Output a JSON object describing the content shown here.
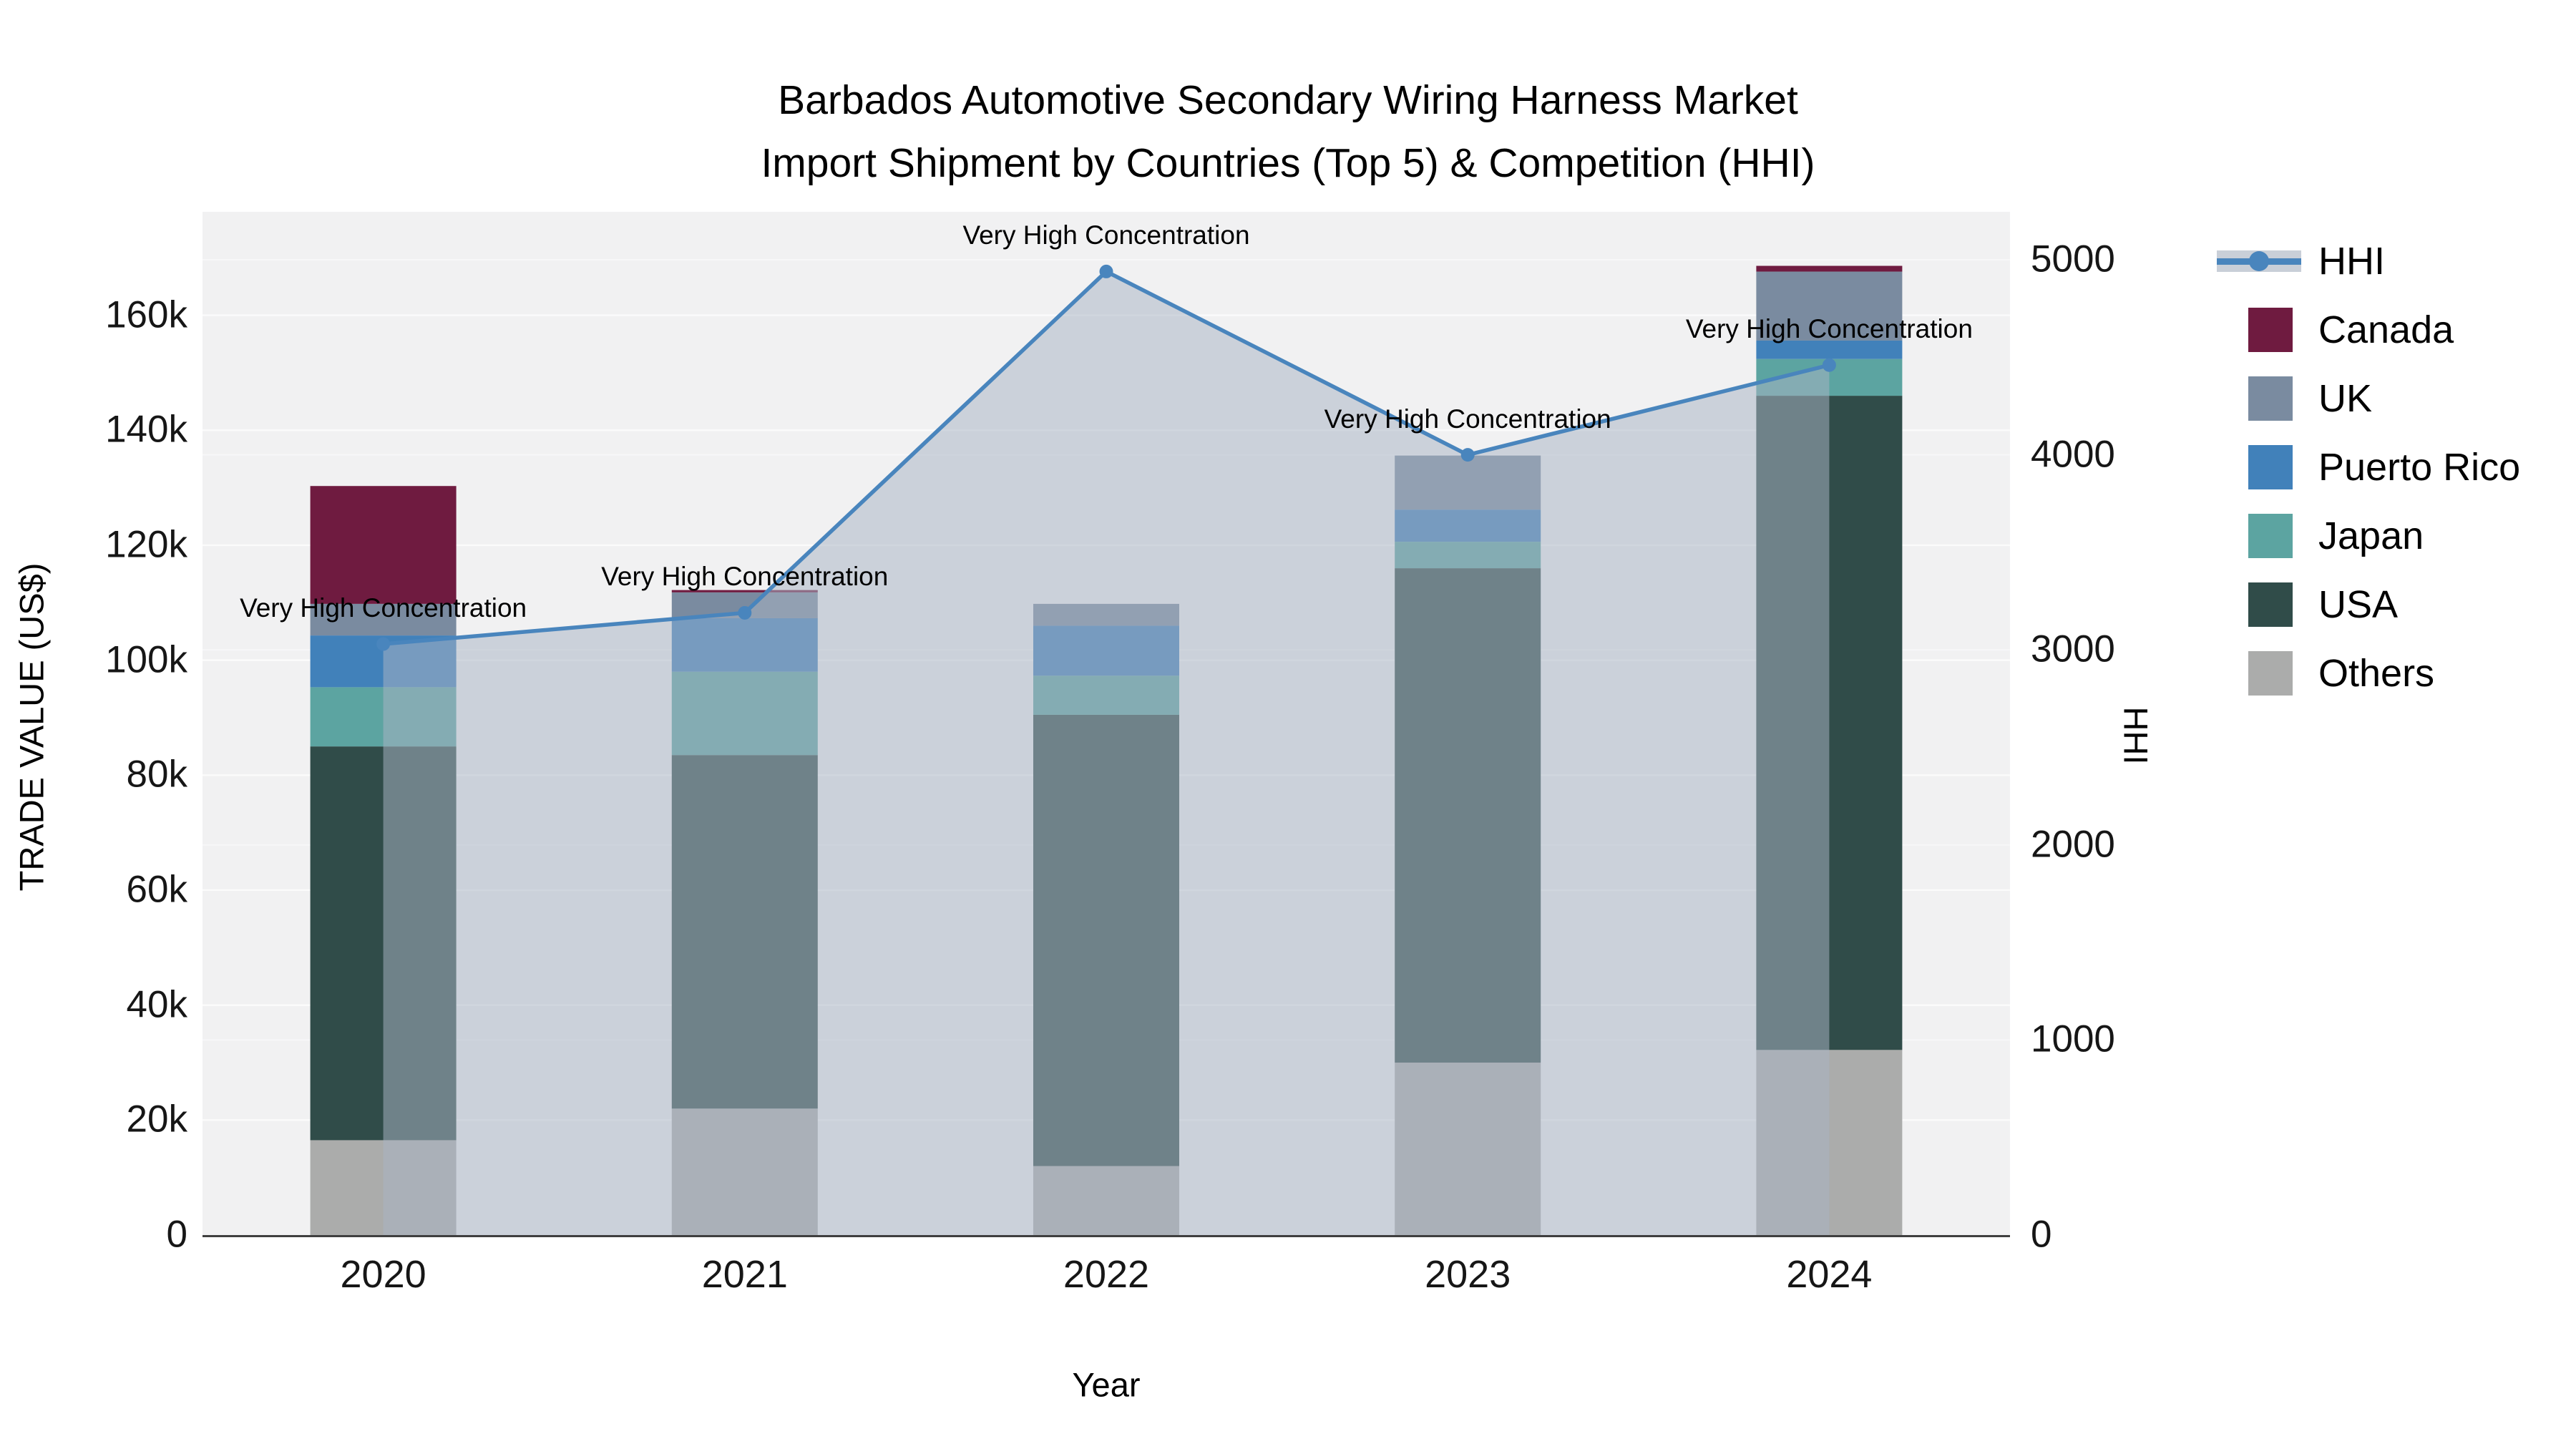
{
  "title": {
    "line1": "Barbados Automotive Secondary Wiring Harness Market",
    "line2": "Import Shipment by Countries (Top 5) & Competition (HHI)"
  },
  "axes": {
    "x": {
      "title": "Year",
      "ticks": [
        "2020",
        "2021",
        "2022",
        "2023",
        "2024"
      ]
    },
    "y_left": {
      "title": "TRADE VALUE (US$)",
      "ticks": [
        "0",
        "20k",
        "40k",
        "60k",
        "80k",
        "100k",
        "120k",
        "140k",
        "160k"
      ],
      "tick_values": [
        0,
        20000,
        40000,
        60000,
        80000,
        100000,
        120000,
        140000,
        160000
      ]
    },
    "y_right": {
      "title": "HHI",
      "ticks": [
        "0",
        "1000",
        "2000",
        "3000",
        "4000",
        "5000"
      ],
      "tick_values": [
        0,
        1000,
        2000,
        3000,
        4000,
        5000
      ]
    }
  },
  "legend": [
    {
      "label": "HHI",
      "type": "line",
      "color": "#4985BD"
    },
    {
      "label": "Canada",
      "type": "square",
      "color": "#6F1B40"
    },
    {
      "label": "UK",
      "type": "square",
      "color": "#7A8BA0"
    },
    {
      "label": "Puerto Rico",
      "type": "square",
      "color": "#4181BA"
    },
    {
      "label": "Japan",
      "type": "square",
      "color": "#5CA4A1"
    },
    {
      "label": "USA",
      "type": "square",
      "color": "#304C49"
    },
    {
      "label": "Others",
      "type": "square",
      "color": "#ABACAB"
    }
  ],
  "chart_data": {
    "type": "combo: stacked bar (left axis) + line with area fill (right axis)",
    "categories": [
      "2020",
      "2021",
      "2022",
      "2023",
      "2024"
    ],
    "bar_unit": "US$",
    "stack_order_bottom_to_top": [
      "Others",
      "USA",
      "Japan",
      "Puerto Rico",
      "UK",
      "Canada"
    ],
    "series": [
      {
        "name": "Others",
        "color": "#ABACAB",
        "values": [
          16500,
          22000,
          12000,
          30000,
          32200
        ]
      },
      {
        "name": "USA",
        "color": "#304C49",
        "values": [
          68500,
          61500,
          78500,
          86000,
          113800
        ]
      },
      {
        "name": "Japan",
        "color": "#5CA4A1",
        "values": [
          10300,
          14500,
          6800,
          4600,
          6400
        ]
      },
      {
        "name": "Puerto Rico",
        "color": "#4181BA",
        "values": [
          9000,
          9300,
          8700,
          5600,
          3200
        ]
      },
      {
        "name": "UK",
        "color": "#7A8BA0",
        "values": [
          5500,
          4500,
          3800,
          9400,
          12000
        ]
      },
      {
        "name": "Canada",
        "color": "#6F1B40",
        "values": [
          20500,
          400,
          0,
          0,
          1000
        ]
      }
    ],
    "bar_totals": [
      130300,
      112200,
      109800,
      135600,
      168600
    ],
    "line_series": {
      "name": "HHI",
      "axis": "right",
      "color": "#4985BD",
      "area_fill": "rgba(168,180,196,0.52)",
      "values": [
        3030,
        3190,
        4940,
        4000,
        4460
      ],
      "point_annotations": [
        "Very High Concentration",
        "Very High Concentration",
        "Very High Concentration",
        "Very High Concentration",
        "Very High Concentration"
      ]
    },
    "title": "Barbados Automotive Secondary Wiring Harness Market Import Shipment by Countries (Top 5) & Competition (HHI)",
    "xlabel": "Year",
    "ylabel_left": "TRADE VALUE (US$)",
    "ylabel_right": "HHI",
    "ylim_left": [
      0,
      178000
    ],
    "ylim_right": [
      0,
      5246
    ],
    "grid": "on",
    "legend_position": "top-right-outside",
    "plot_background": "#F1F1F2"
  }
}
